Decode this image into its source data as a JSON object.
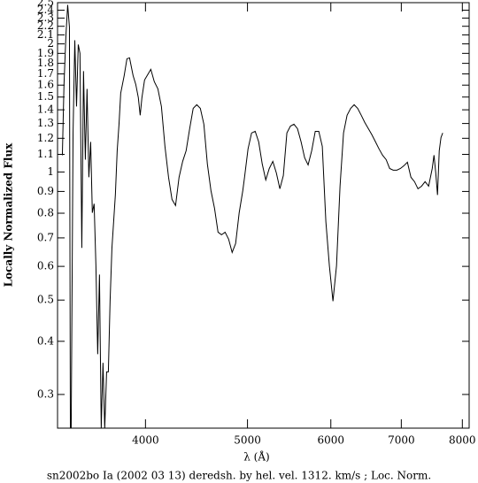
{
  "chart_data": {
    "type": "line",
    "xlabel": "λ (Å)",
    "ylabel": "Locally Normalized Flux",
    "caption": "sn2002bo Ia (2002 03 13) deredsh. by hel. vel.  1312. km/s ;  Loc. Norm.",
    "xlog": true,
    "ylog": true,
    "color": "#000000",
    "xlim": [
      3300,
      8120
    ],
    "ylim": [
      0.25,
      2.5
    ],
    "xticks": [
      4000,
      5000,
      6000,
      7000,
      8000
    ],
    "yticks": [
      0.3,
      0.4,
      0.5,
      0.6,
      0.7,
      0.8,
      0.9,
      1,
      1.1,
      1.2,
      1.3,
      1.4,
      1.5,
      1.6,
      1.7,
      1.8,
      1.9,
      2,
      2.1,
      2.2,
      2.3,
      2.4,
      2.5
    ],
    "x": [
      3335,
      3347,
      3361,
      3374,
      3387,
      3394,
      3400,
      3414,
      3427,
      3440,
      3453,
      3466,
      3480,
      3493,
      3507,
      3520,
      3534,
      3548,
      3561,
      3575,
      3589,
      3603,
      3617,
      3631,
      3645,
      3659,
      3674,
      3688,
      3702,
      3717,
      3731,
      3745,
      3760,
      3775,
      3789,
      3818,
      3841,
      3863,
      3893,
      3916,
      3938,
      3954,
      3969,
      3992,
      4015,
      4047,
      4078,
      4110,
      4142,
      4174,
      4207,
      4239,
      4272,
      4305,
      4339,
      4372,
      4406,
      4440,
      4475,
      4510,
      4545,
      4580,
      4616,
      4652,
      4688,
      4724,
      4761,
      4798,
      4835,
      4872,
      4910,
      4949,
      4968,
      5006,
      5045,
      5085,
      5124,
      5164,
      5204,
      5244,
      5285,
      5326,
      5367,
      5408,
      5450,
      5493,
      5535,
      5578,
      5622,
      5666,
      5709,
      5754,
      5799,
      5844,
      5889,
      5935,
      5981,
      6028,
      6075,
      6122,
      6169,
      6217,
      6266,
      6314,
      6363,
      6413,
      6463,
      6514,
      6564,
      6616,
      6667,
      6719,
      6772,
      6824,
      6877,
      6932,
      6986,
      7039,
      7094,
      7149,
      7205,
      7260,
      7317,
      7374,
      7431,
      7490,
      7519,
      7548,
      7577,
      7606,
      7635,
      7664
    ],
    "values": [
      1.095,
      1.606,
      2.09,
      2.47,
      2.19,
      0.25,
      0.25,
      1.235,
      2.04,
      1.425,
      1.993,
      1.9,
      0.663,
      1.726,
      1.069,
      1.568,
      0.972,
      1.177,
      0.802,
      0.842,
      0.602,
      0.373,
      0.574,
      0.25,
      0.356,
      0.25,
      0.339,
      0.339,
      0.497,
      0.663,
      0.765,
      0.883,
      1.122,
      1.295,
      1.531,
      1.685,
      1.845,
      1.854,
      1.685,
      1.606,
      1.495,
      1.359,
      1.495,
      1.645,
      1.685,
      1.743,
      1.63,
      1.568,
      1.425,
      1.149,
      0.972,
      0.862,
      0.834,
      0.972,
      1.059,
      1.122,
      1.264,
      1.411,
      1.439,
      1.411,
      1.295,
      1.044,
      0.904,
      0.822,
      0.722,
      0.712,
      0.722,
      0.695,
      0.647,
      0.679,
      0.802,
      0.904,
      0.972,
      1.133,
      1.235,
      1.246,
      1.177,
      1.044,
      0.958,
      1.019,
      1.059,
      0.995,
      0.913,
      0.981,
      1.235,
      1.282,
      1.295,
      1.264,
      1.177,
      1.08,
      1.039,
      1.122,
      1.246,
      1.246,
      1.149,
      0.765,
      0.602,
      0.497,
      0.602,
      0.926,
      1.235,
      1.359,
      1.411,
      1.439,
      1.411,
      1.359,
      1.307,
      1.264,
      1.223,
      1.177,
      1.133,
      1.095,
      1.069,
      1.019,
      1.01,
      1.01,
      1.019,
      1.034,
      1.054,
      0.972,
      0.949,
      0.913,
      0.926,
      0.949,
      0.926,
      1.019,
      1.095,
      0.995,
      0.883,
      1.122,
      1.205,
      1.235
    ]
  }
}
